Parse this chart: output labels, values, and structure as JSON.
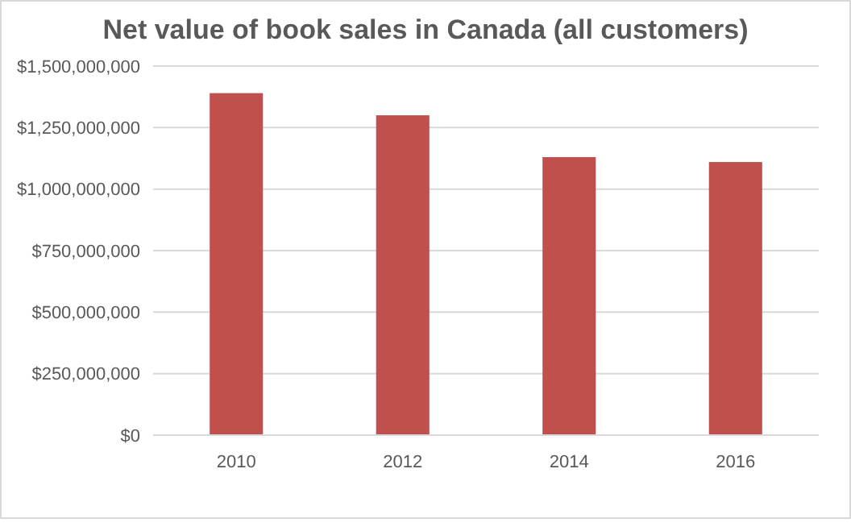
{
  "chart_data": {
    "type": "bar",
    "title": "Net value of book sales in Canada (all customers)",
    "categories": [
      "2010",
      "2012",
      "2014",
      "2016"
    ],
    "values": [
      1390000000,
      1300000000,
      1130000000,
      1110000000
    ],
    "color": "#c0504d",
    "ylim": [
      0,
      1500000000
    ],
    "yticks": [
      {
        "value": 0,
        "label": "$0"
      },
      {
        "value": 250000000,
        "label": "$250,000,000"
      },
      {
        "value": 500000000,
        "label": "$500,000,000"
      },
      {
        "value": 750000000,
        "label": "$750,000,000"
      },
      {
        "value": 1000000000,
        "label": "$1,000,000,000"
      },
      {
        "value": 1250000000,
        "label": "$1,250,000,000"
      },
      {
        "value": 1500000000,
        "label": "$1,500,000,000"
      }
    ],
    "grid": true
  }
}
